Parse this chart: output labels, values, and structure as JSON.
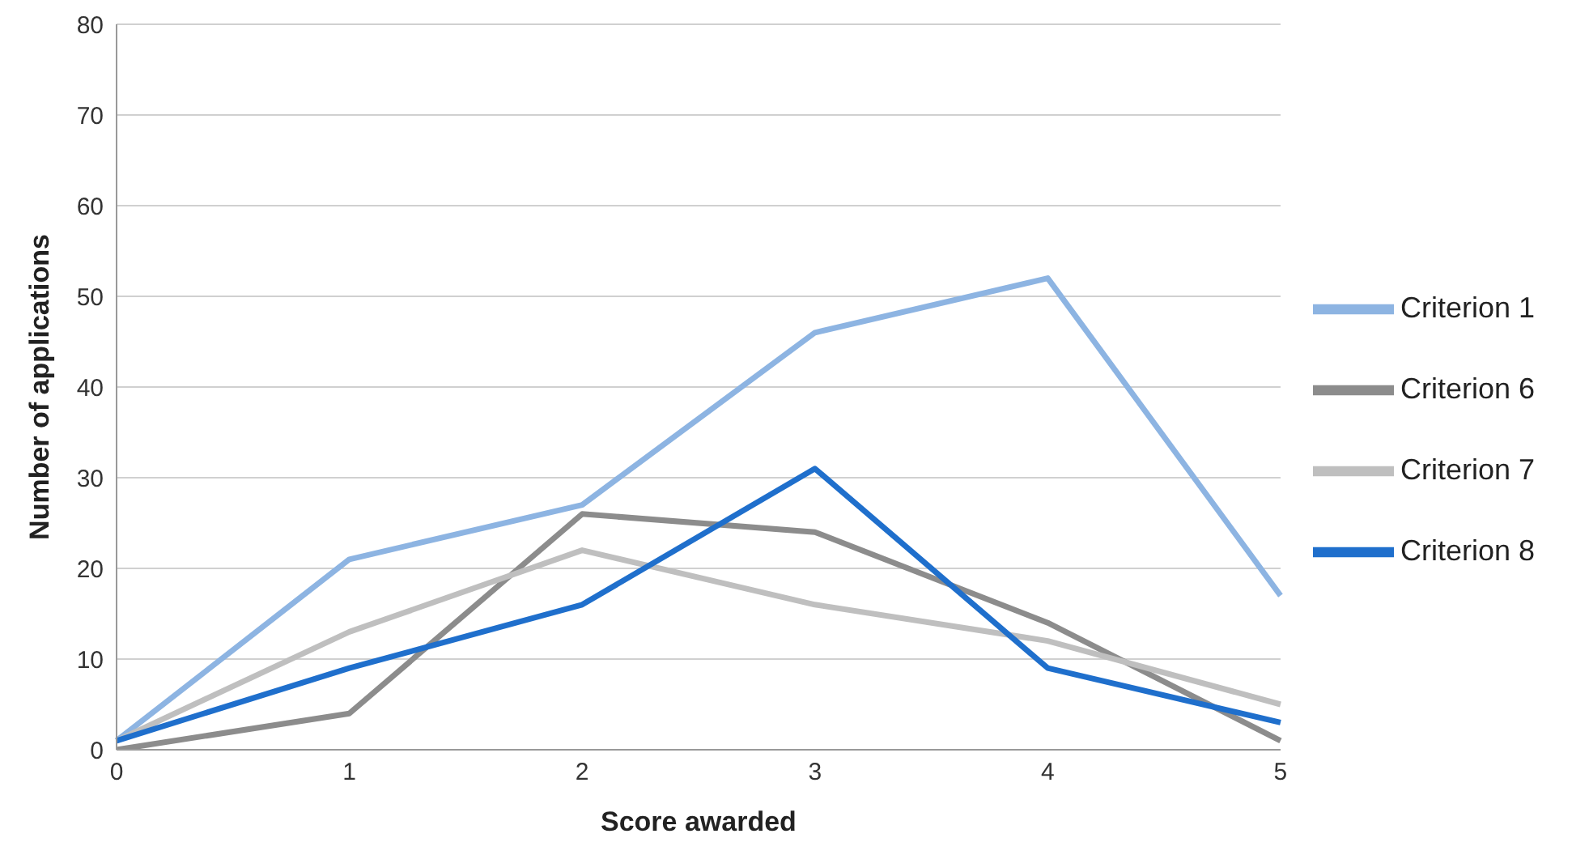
{
  "chart_data": {
    "type": "line",
    "xlabel": "Score awarded",
    "ylabel": "Number of applications",
    "categories": [
      "0",
      "1",
      "2",
      "3",
      "4",
      "5"
    ],
    "series": [
      {
        "name": "Criterion 1",
        "color": "#8db4e2",
        "values": [
          1,
          21,
          27,
          46,
          52,
          17
        ]
      },
      {
        "name": "Criterion 6",
        "color": "#8c8c8c",
        "values": [
          0,
          4,
          26,
          24,
          14,
          1
        ]
      },
      {
        "name": "Criterion 7",
        "color": "#bfbfbf",
        "values": [
          1,
          13,
          22,
          16,
          12,
          5
        ]
      },
      {
        "name": "Criterion 8",
        "color": "#1f6fcc",
        "values": [
          1,
          9,
          16,
          31,
          9,
          3
        ]
      }
    ],
    "ylim": [
      0,
      80
    ],
    "yticks": [
      0,
      10,
      20,
      30,
      40,
      50,
      60,
      70,
      80
    ],
    "grid": "y",
    "legend": "right",
    "marker": "none",
    "line_style": "solid"
  }
}
